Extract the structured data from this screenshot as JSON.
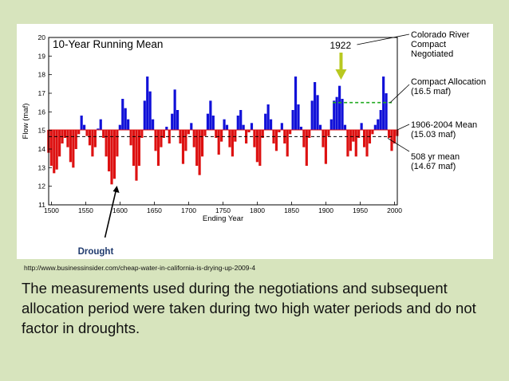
{
  "chart_data": {
    "type": "bar",
    "title": "10-Year Running Mean",
    "xlabel": "Ending Year",
    "ylabel": "Flow (maf)",
    "xlim": [
      1496,
      2004
    ],
    "ylim": [
      11,
      20
    ],
    "x_ticks": [
      "1500",
      "1550",
      "1600",
      "1650",
      "1700",
      "1750",
      "1800",
      "1850",
      "1900",
      "1950",
      "2000"
    ],
    "y_ticks": [
      "11",
      "12",
      "13",
      "14",
      "15",
      "16",
      "17",
      "18",
      "19",
      "20"
    ],
    "baseline": 15.03,
    "colors": {
      "above": "#1010d8",
      "below": "#dd1111",
      "allocation_line": "#22aa22",
      "mean_line": "#000000",
      "marker_arrow": "#b8c820"
    },
    "reference_lines": [
      {
        "name": "Compact Allocation",
        "value": 16.5,
        "from_year": 1910,
        "to_year": 1996
      },
      {
        "name": "508 yr mean",
        "value": 14.67,
        "from_year": 1496,
        "to_year": 1996
      }
    ],
    "series": [
      {
        "name": "10-year running mean flow",
        "x": [
          1496,
          1500,
          1504,
          1508,
          1512,
          1516,
          1520,
          1524,
          1528,
          1532,
          1536,
          1540,
          1544,
          1548,
          1552,
          1556,
          1560,
          1564,
          1568,
          1572,
          1576,
          1580,
          1584,
          1588,
          1592,
          1596,
          1600,
          1604,
          1608,
          1612,
          1616,
          1620,
          1624,
          1628,
          1632,
          1636,
          1640,
          1644,
          1648,
          1652,
          1656,
          1660,
          1664,
          1668,
          1672,
          1676,
          1680,
          1684,
          1688,
          1692,
          1696,
          1700,
          1704,
          1708,
          1712,
          1716,
          1720,
          1724,
          1728,
          1732,
          1736,
          1740,
          1744,
          1748,
          1752,
          1756,
          1760,
          1764,
          1768,
          1772,
          1776,
          1780,
          1784,
          1788,
          1792,
          1796,
          1800,
          1804,
          1808,
          1812,
          1816,
          1820,
          1824,
          1828,
          1832,
          1836,
          1840,
          1844,
          1848,
          1852,
          1856,
          1860,
          1864,
          1868,
          1872,
          1876,
          1880,
          1884,
          1888,
          1892,
          1896,
          1900,
          1904,
          1908,
          1912,
          1916,
          1920,
          1924,
          1928,
          1932,
          1936,
          1940,
          1944,
          1948,
          1952,
          1956,
          1960,
          1964,
          1968,
          1972,
          1976,
          1980,
          1984,
          1988,
          1992,
          1996,
          2000,
          2004
        ],
        "values": [
          13.8,
          13.1,
          12.7,
          12.9,
          13.6,
          14.3,
          14.6,
          14.1,
          13.3,
          13.0,
          14.0,
          14.8,
          15.8,
          15.3,
          14.7,
          14.2,
          13.6,
          14.1,
          15.1,
          15.6,
          14.6,
          13.6,
          12.8,
          12.1,
          12.4,
          13.6,
          15.3,
          16.7,
          16.2,
          15.6,
          14.2,
          13.1,
          12.3,
          13.1,
          14.6,
          16.6,
          17.9,
          17.1,
          15.6,
          13.9,
          13.1,
          14.1,
          14.6,
          15.2,
          14.3,
          15.9,
          17.2,
          16.1,
          14.3,
          13.2,
          13.9,
          14.8,
          15.4,
          14.1,
          13.1,
          12.6,
          13.6,
          14.7,
          15.9,
          16.6,
          15.8,
          14.6,
          13.7,
          14.4,
          15.6,
          15.3,
          14.1,
          13.6,
          14.4,
          15.8,
          16.1,
          15.3,
          14.3,
          14.9,
          15.4,
          14.1,
          13.3,
          13.1,
          14.6,
          15.9,
          16.4,
          15.6,
          14.3,
          13.9,
          14.9,
          15.4,
          14.3,
          13.6,
          14.8,
          16.1,
          17.9,
          16.4,
          15.2,
          14.1,
          13.1,
          14.6,
          16.6,
          17.6,
          16.9,
          15.3,
          14.1,
          13.2,
          14.7,
          15.6,
          16.6,
          16.8,
          17.4,
          16.7,
          15.3,
          13.6,
          13.9,
          14.4,
          13.6,
          14.6,
          15.4,
          14.1,
          13.6,
          14.3,
          14.8,
          15.3,
          15.6,
          16.1,
          17.9,
          17.0,
          14.6,
          13.9,
          14.3,
          14.7
        ]
      }
    ],
    "annotations": {
      "marker_year_label": "1922",
      "colorado_compact": [
        "Colorado River",
        "Compact",
        "Negotiated"
      ],
      "compact_allocation": [
        "Compact Allocation",
        "(16.5 maf)"
      ],
      "mean_1906_2004": [
        "1906-2004 Mean",
        "(15.03 maf)"
      ],
      "mean_508yr": [
        "508 yr mean",
        "(14.67 maf)"
      ],
      "drought_label": "Drought"
    }
  },
  "source_url": "http://www.businessinsider.com/cheap-water-in-california-is-drying-up-2009-4",
  "caption": "The measurements used during the negotiations and subsequent allocation period were taken during two high water periods and do not factor in droughts."
}
